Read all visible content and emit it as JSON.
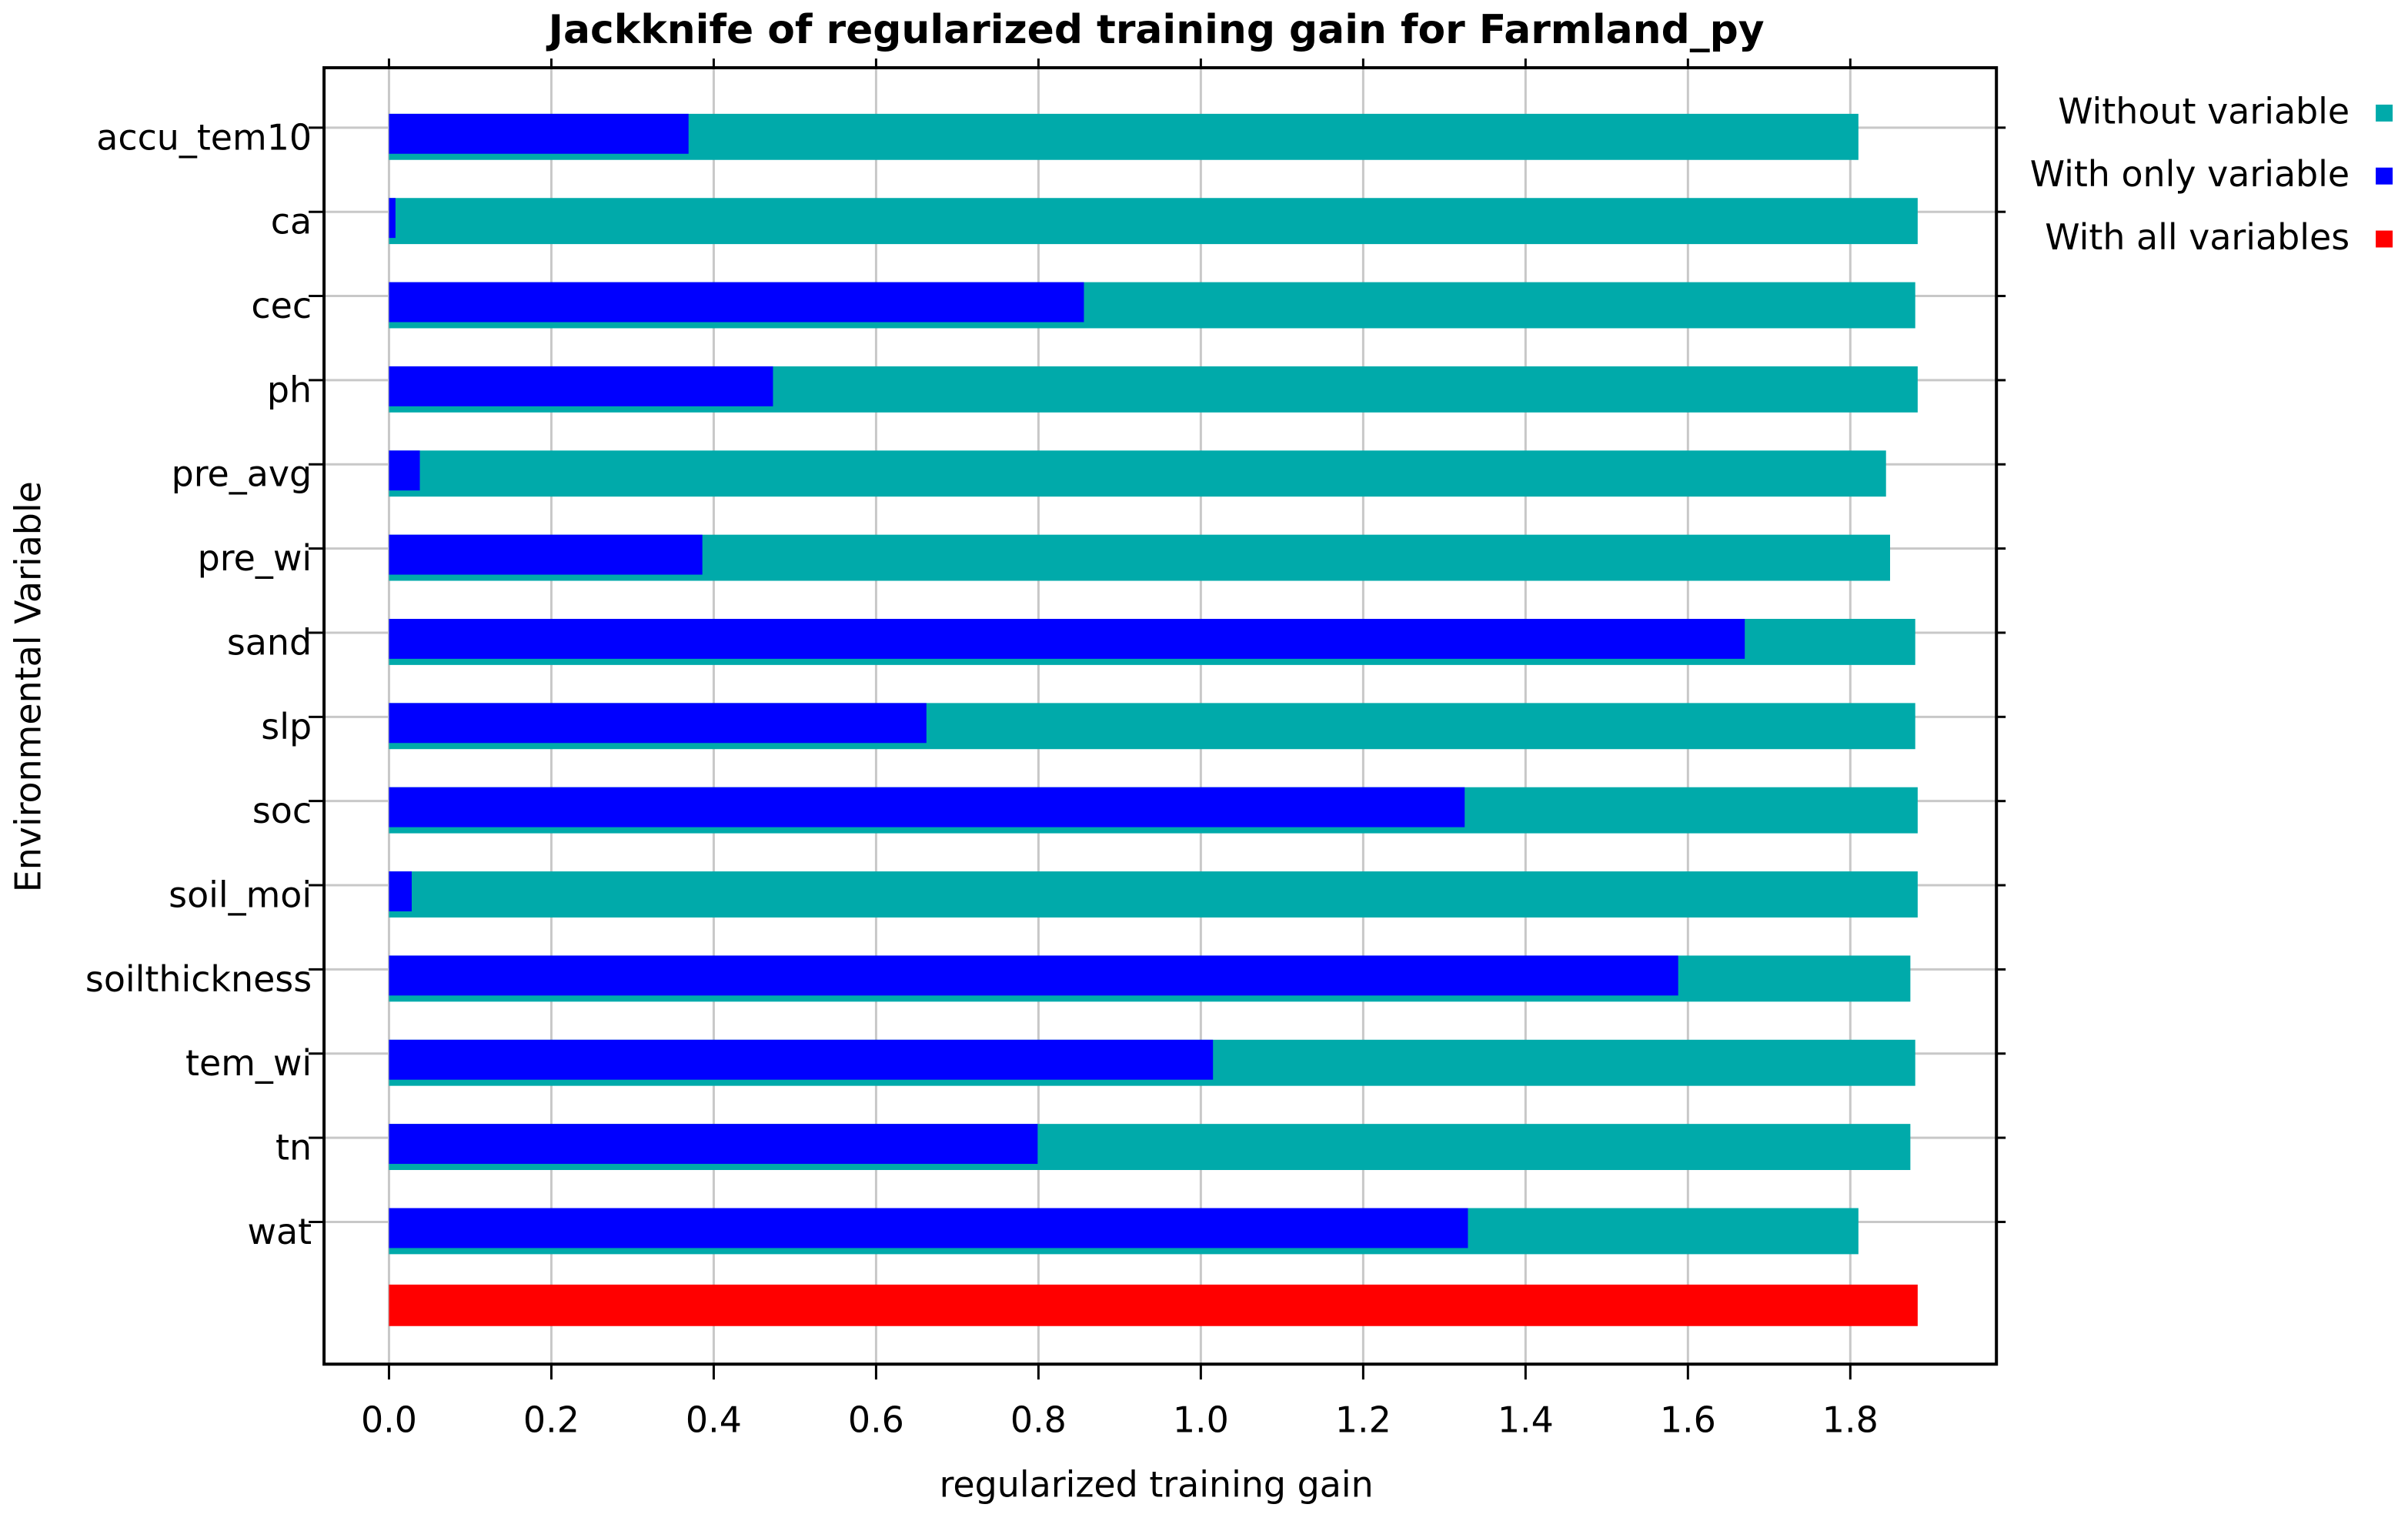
{
  "chart_data": {
    "type": "bar",
    "orientation": "horizontal",
    "title": "Jackknife of regularized training gain for Farmland_py",
    "x_label": "regularized training gain",
    "y_label": "Environmental Variable",
    "categories": [
      "accu_tem10",
      "ca",
      "cec",
      "ph",
      "pre_avg",
      "pre_wi",
      "sand",
      "slp",
      "soc",
      "soil_moi",
      "soilthickness",
      "tem_wi",
      "tn",
      "wat",
      null
    ],
    "series": [
      {
        "name": "Without variable",
        "color": "#00aaaa",
        "values": [
          1.81,
          1.883,
          1.88,
          1.883,
          1.844,
          1.849,
          1.88,
          1.88,
          1.883,
          1.883,
          1.874,
          1.88,
          1.874,
          1.81,
          null
        ]
      },
      {
        "name": "With only variable",
        "color": "#0000ff",
        "values": [
          0.369,
          0.008,
          0.856,
          0.473,
          0.038,
          0.386,
          1.67,
          0.662,
          1.325,
          0.028,
          1.588,
          1.015,
          0.799,
          1.329,
          null
        ]
      },
      {
        "name": "With all variables",
        "color": "#ff0000",
        "values": [
          null,
          null,
          null,
          null,
          null,
          null,
          null,
          null,
          null,
          null,
          null,
          null,
          null,
          null,
          1.883
        ]
      }
    ],
    "xlim": [
      -0.08,
      1.98
    ],
    "xticks": [
      {
        "value": 0,
        "label": "0.0"
      },
      0.2,
      0.4,
      0.6,
      0.8,
      {
        "value": 1,
        "label": "1.0"
      },
      1.2,
      1.4,
      1.6,
      1.8
    ],
    "grid": true,
    "legend": "right"
  }
}
